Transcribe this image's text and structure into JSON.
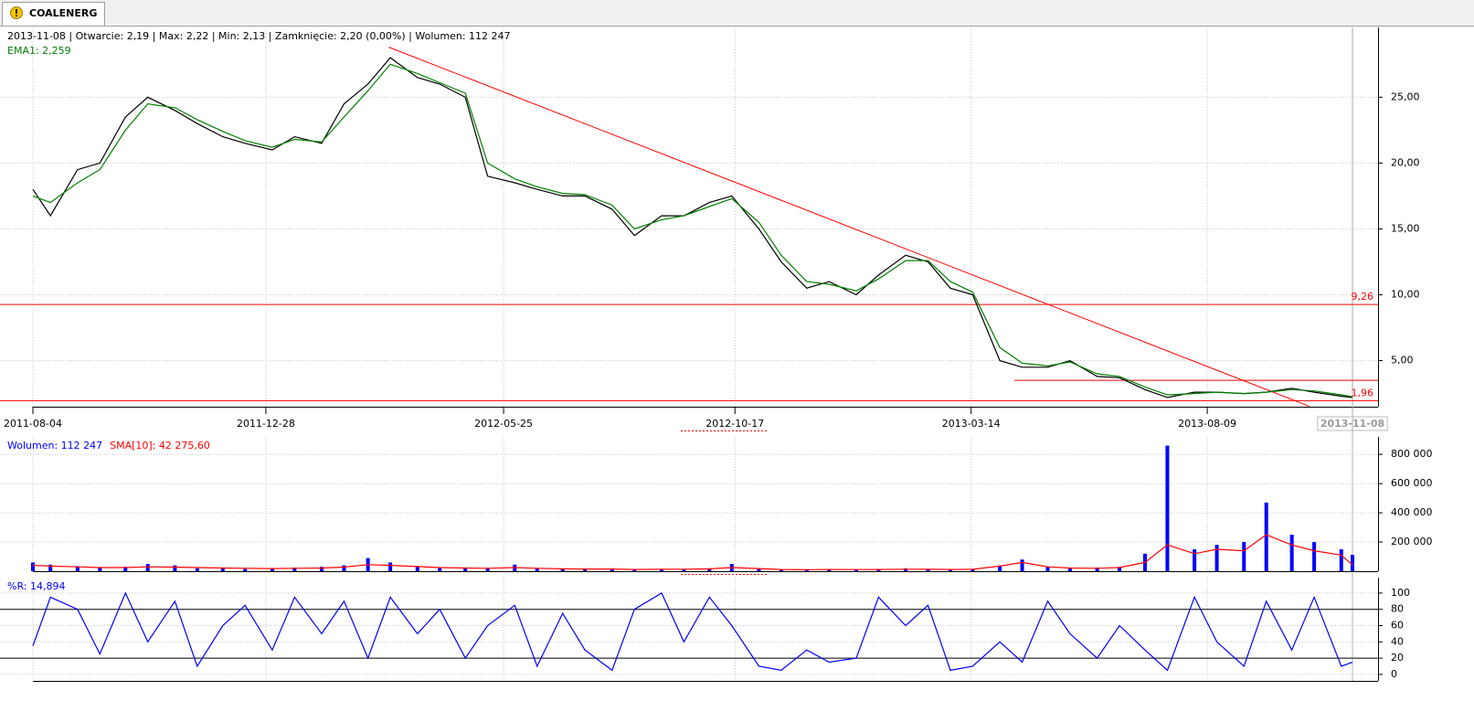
{
  "tab": "COALENERG",
  "chart_data": [
    {
      "type": "line",
      "title": "2013-11-08 | Otwarcie: 2,19 | Max: 2,22 | Min: 2,13 | Zamknięcie: 2,20 (0,00%) | Wolumen: 112 247",
      "x": [
        "2011-08-04",
        "2011-08-15",
        "2011-09-01",
        "2011-09-15",
        "2011-10-01",
        "2011-10-15",
        "2011-11-01",
        "2011-11-15",
        "2011-12-01",
        "2011-12-15",
        "2012-01-01",
        "2012-01-15",
        "2012-02-01",
        "2012-02-15",
        "2012-03-01",
        "2012-03-15",
        "2012-04-01",
        "2012-04-15",
        "2012-05-01",
        "2012-05-15",
        "2012-06-01",
        "2012-06-15",
        "2012-07-01",
        "2012-07-15",
        "2012-08-01",
        "2012-08-15",
        "2012-09-01",
        "2012-09-15",
        "2012-10-01",
        "2012-10-15",
        "2012-11-01",
        "2012-11-15",
        "2012-12-01",
        "2012-12-15",
        "2013-01-01",
        "2013-01-15",
        "2013-02-01",
        "2013-02-15",
        "2013-03-01",
        "2013-03-15",
        "2013-04-01",
        "2013-04-15",
        "2013-05-01",
        "2013-05-15",
        "2013-06-01",
        "2013-06-15",
        "2013-07-01",
        "2013-07-15",
        "2013-08-01",
        "2013-08-15",
        "2013-09-01",
        "2013-09-15",
        "2013-10-01",
        "2013-10-15",
        "2013-11-01",
        "2013-11-08"
      ],
      "series": [
        {
          "color": "#000000",
          "values": [
            18,
            16,
            19.5,
            20,
            23.5,
            25,
            24,
            23,
            22,
            21.5,
            21,
            22,
            21.5,
            24.5,
            26,
            28,
            26.5,
            26,
            25,
            19,
            18.5,
            18,
            17.5,
            17.5,
            16.5,
            14.5,
            16,
            16,
            17,
            17.5,
            15,
            12.5,
            10.5,
            11,
            10,
            11.5,
            13,
            12.5,
            10.5,
            10,
            5,
            4.5,
            4.5,
            5,
            3.8,
            3.7,
            2.8,
            2.2,
            2.6,
            2.6,
            2.5,
            2.6,
            2.9,
            2.6,
            2.3,
            2.2
          ]
        },
        {
          "name": "EMA1: 2,259",
          "color": "#008000",
          "values": [
            17.5,
            17,
            18.5,
            19.5,
            22.5,
            24.5,
            24.2,
            23.3,
            22.4,
            21.7,
            21.2,
            21.8,
            21.6,
            23.5,
            25.5,
            27.5,
            26.8,
            26.1,
            25.3,
            20,
            18.8,
            18.2,
            17.7,
            17.6,
            16.8,
            15,
            15.7,
            16,
            16.7,
            17.3,
            15.5,
            13,
            11,
            10.8,
            10.3,
            11.2,
            12.6,
            12.6,
            11,
            10.2,
            6,
            4.8,
            4.6,
            4.9,
            4,
            3.8,
            3,
            2.4,
            2.5,
            2.6,
            2.5,
            2.6,
            2.8,
            2.7,
            2.4,
            2.259
          ]
        }
      ],
      "xlim": [
        "2011-08-04",
        "2013-11-08"
      ],
      "xticks": [
        "2011-08-04",
        "2011-12-28",
        "2012-05-25",
        "2012-10-17",
        "2013-03-14",
        "2013-08-09",
        "2013-11-08"
      ],
      "cursor": "2013-11-08",
      "ylim": [
        1.5,
        30.3
      ],
      "yticks": [
        {
          "value": 5,
          "label": "5,00"
        },
        {
          "value": 10,
          "label": "10,00"
        },
        {
          "value": 15,
          "label": "15,00"
        },
        {
          "value": 20,
          "label": "20,00"
        },
        {
          "value": 25,
          "label": "25,00"
        }
      ],
      "levels": [
        {
          "value": 9.26,
          "label": "9,26",
          "color": "#ff0000"
        },
        {
          "value": 1.96,
          "label": "1,96",
          "color": "#ff0000"
        },
        {
          "value": 3.5,
          "from": "2013-04-10",
          "color": "#ff0000"
        }
      ],
      "trendline": {
        "x": [
          "2012-03-14",
          "2013-10-12"
        ],
        "y": [
          28.8,
          1.53
        ],
        "color": "#ff0000"
      },
      "grid": true
    },
    {
      "type": "bar",
      "x": [
        "2011-08-04",
        "2011-08-15",
        "2011-09-01",
        "2011-09-15",
        "2011-10-01",
        "2011-10-15",
        "2011-11-01",
        "2011-11-15",
        "2011-12-01",
        "2011-12-15",
        "2012-01-01",
        "2012-01-15",
        "2012-02-01",
        "2012-02-15",
        "2012-03-01",
        "2012-03-15",
        "2012-04-01",
        "2012-04-15",
        "2012-05-01",
        "2012-05-15",
        "2012-06-01",
        "2012-06-15",
        "2012-07-01",
        "2012-07-15",
        "2012-08-01",
        "2012-08-15",
        "2012-09-01",
        "2012-09-15",
        "2012-10-01",
        "2012-10-15",
        "2012-11-01",
        "2012-11-15",
        "2012-12-01",
        "2012-12-15",
        "2013-01-01",
        "2013-01-15",
        "2013-02-01",
        "2013-02-15",
        "2013-03-01",
        "2013-03-15",
        "2013-04-01",
        "2013-04-15",
        "2013-05-01",
        "2013-05-15",
        "2013-06-01",
        "2013-06-15",
        "2013-07-01",
        "2013-07-15",
        "2013-08-01",
        "2013-08-15",
        "2013-09-01",
        "2013-09-15",
        "2013-10-01",
        "2013-10-15",
        "2013-11-01",
        "2013-11-08"
      ],
      "series": [
        {
          "name": "Wolumen: 112 247",
          "color": "#0000ff",
          "values": [
            60000,
            45000,
            35000,
            25000,
            30000,
            50000,
            40000,
            20000,
            25000,
            15000,
            20000,
            25000,
            30000,
            40000,
            90000,
            60000,
            35000,
            25000,
            20000,
            20000,
            45000,
            20000,
            15000,
            15000,
            20000,
            10000,
            15000,
            15000,
            20000,
            50000,
            15000,
            10000,
            10000,
            15000,
            10000,
            15000,
            20000,
            15000,
            10000,
            15000,
            40000,
            80000,
            30000,
            20000,
            25000,
            30000,
            120000,
            860000,
            150000,
            180000,
            200000,
            470000,
            250000,
            200000,
            150000,
            112247
          ]
        },
        {
          "name": "SMA[10]: 42 275,60",
          "color": "#ff0000",
          "type": "line",
          "values": [
            40000,
            35000,
            30000,
            25000,
            25000,
            30000,
            28000,
            25000,
            22000,
            20000,
            18000,
            20000,
            22000,
            28000,
            45000,
            40000,
            32000,
            25000,
            22000,
            20000,
            25000,
            20000,
            16000,
            15000,
            15000,
            12000,
            13000,
            14000,
            16000,
            25000,
            18000,
            12000,
            10000,
            12000,
            11000,
            12000,
            14000,
            13000,
            12000,
            13000,
            35000,
            60000,
            30000,
            22000,
            20000,
            25000,
            60000,
            180000,
            120000,
            150000,
            140000,
            250000,
            180000,
            140000,
            110000,
            42275.6
          ]
        }
      ],
      "xlim": [
        "2011-08-04",
        "2013-11-08"
      ],
      "ylim": [
        0,
        920000
      ],
      "yticks": [
        {
          "value": 200000,
          "label": "200 000"
        },
        {
          "value": 400000,
          "label": "400 000"
        },
        {
          "value": 600000,
          "label": "600 000"
        },
        {
          "value": 800000,
          "label": "800 000"
        }
      ],
      "grid": true
    },
    {
      "type": "line",
      "x": [
        "2011-08-04",
        "2011-08-15",
        "2011-09-01",
        "2011-09-15",
        "2011-10-01",
        "2011-10-15",
        "2011-11-01",
        "2011-11-15",
        "2011-12-01",
        "2011-12-15",
        "2012-01-01",
        "2012-01-15",
        "2012-02-01",
        "2012-02-15",
        "2012-03-01",
        "2012-03-15",
        "2012-04-01",
        "2012-04-15",
        "2012-05-01",
        "2012-05-15",
        "2012-06-01",
        "2012-06-15",
        "2012-07-01",
        "2012-07-15",
        "2012-08-01",
        "2012-08-15",
        "2012-09-01",
        "2012-09-15",
        "2012-10-01",
        "2012-10-15",
        "2012-11-01",
        "2012-11-15",
        "2012-12-01",
        "2012-12-15",
        "2013-01-01",
        "2013-01-15",
        "2013-02-01",
        "2013-02-15",
        "2013-03-01",
        "2013-03-15",
        "2013-04-01",
        "2013-04-15",
        "2013-05-01",
        "2013-05-15",
        "2013-06-01",
        "2013-06-15",
        "2013-07-01",
        "2013-07-15",
        "2013-08-01",
        "2013-08-15",
        "2013-09-01",
        "2013-09-15",
        "2013-10-01",
        "2013-10-15",
        "2013-11-01",
        "2013-11-08"
      ],
      "series": [
        {
          "name": "%R: 14,894",
          "color": "#0000ff",
          "values": [
            35,
            95,
            80,
            25,
            100,
            40,
            90,
            10,
            60,
            85,
            30,
            95,
            50,
            90,
            20,
            95,
            50,
            80,
            20,
            60,
            85,
            10,
            75,
            30,
            5,
            80,
            100,
            40,
            95,
            60,
            10,
            5,
            30,
            15,
            20,
            95,
            60,
            85,
            5,
            10,
            40,
            15,
            90,
            50,
            20,
            60,
            30,
            5,
            95,
            40,
            10,
            90,
            30,
            95,
            10,
            14.894
          ]
        }
      ],
      "xlim": [
        "2011-08-04",
        "2013-11-08"
      ],
      "ylim": [
        -8,
        119
      ],
      "yticks": [
        0,
        20,
        40,
        60,
        80,
        100
      ],
      "levels": [
        {
          "value": 80,
          "color": "#000000"
        },
        {
          "value": 20,
          "color": "#000000"
        }
      ],
      "grid": true
    }
  ]
}
